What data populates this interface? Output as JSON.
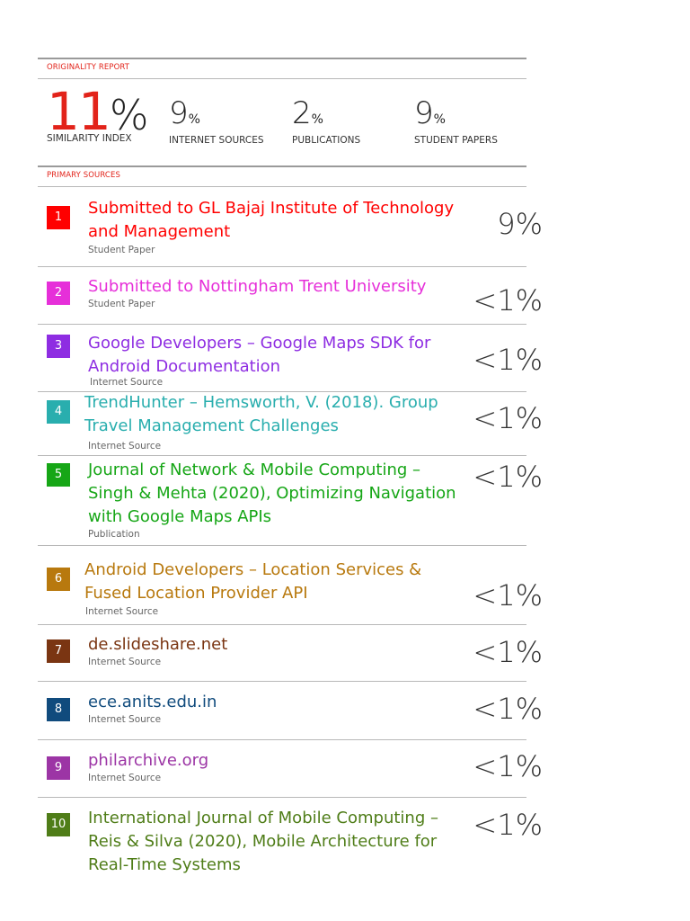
{
  "header": {
    "originality_report": "ORIGINALITY REPORT",
    "primary_sources": "PRIMARY SOURCES"
  },
  "summary": {
    "similarity": {
      "value": "11",
      "pct": "%",
      "label": "SIMILARITY INDEX"
    },
    "internet": {
      "value": "9",
      "pct": "%",
      "label": "INTERNET SOURCES"
    },
    "publications": {
      "value": "2",
      "pct": "%",
      "label": "PUBLICATIONS"
    },
    "student": {
      "value": "9",
      "pct": "%",
      "label": "STUDENT PAPERS"
    }
  },
  "sources": [
    {
      "rank": "1",
      "title": "Submitted to GL Bajaj Institute of Technology and Management",
      "type": "Student Paper",
      "score": "9%",
      "color": "#ff0000"
    },
    {
      "rank": "2",
      "title": "Submitted to Nottingham Trent University",
      "type": "Student Paper",
      "score": "<1%",
      "color": "#e62fd9"
    },
    {
      "rank": "3",
      "title": "Google Developers – Google Maps SDK for Android Documentation",
      "type": "Internet Source",
      "score": "<1%",
      "color": "#8e2de2"
    },
    {
      "rank": "4",
      "title": "TrendHunter – Hemsworth, V. (2018). Group Travel Management Challenges",
      "type": "Internet Source",
      "score": "<1%",
      "color": "#29aeae"
    },
    {
      "rank": "5",
      "title": "Journal of Network & Mobile Computing – Singh & Mehta (2020), Optimizing Navigation with Google Maps APIs",
      "type": "Publication",
      "score": "<1%",
      "color": "#16a616"
    },
    {
      "rank": "6",
      "title": "Android Developers – Location Services & Fused Location Provider API",
      "type": "Internet Source",
      "score": "<1%",
      "color": "#b8790e"
    },
    {
      "rank": "7",
      "title": "de.slideshare.net",
      "type": "Internet Source",
      "score": "<1%",
      "color": "#7a3512"
    },
    {
      "rank": "8",
      "title": "ece.anits.edu.in",
      "type": "Internet Source",
      "score": "<1%",
      "color": "#104b7d"
    },
    {
      "rank": "9",
      "title": "philarchive.org",
      "type": "Internet Source",
      "score": "<1%",
      "color": "#9c35a5"
    },
    {
      "rank": "10",
      "title": "International Journal of Mobile Computing – Reis & Silva (2020), Mobile Architecture for Real-Time Systems",
      "type": "Internet Source",
      "score": "<1%",
      "color": "#4f7d18"
    }
  ]
}
